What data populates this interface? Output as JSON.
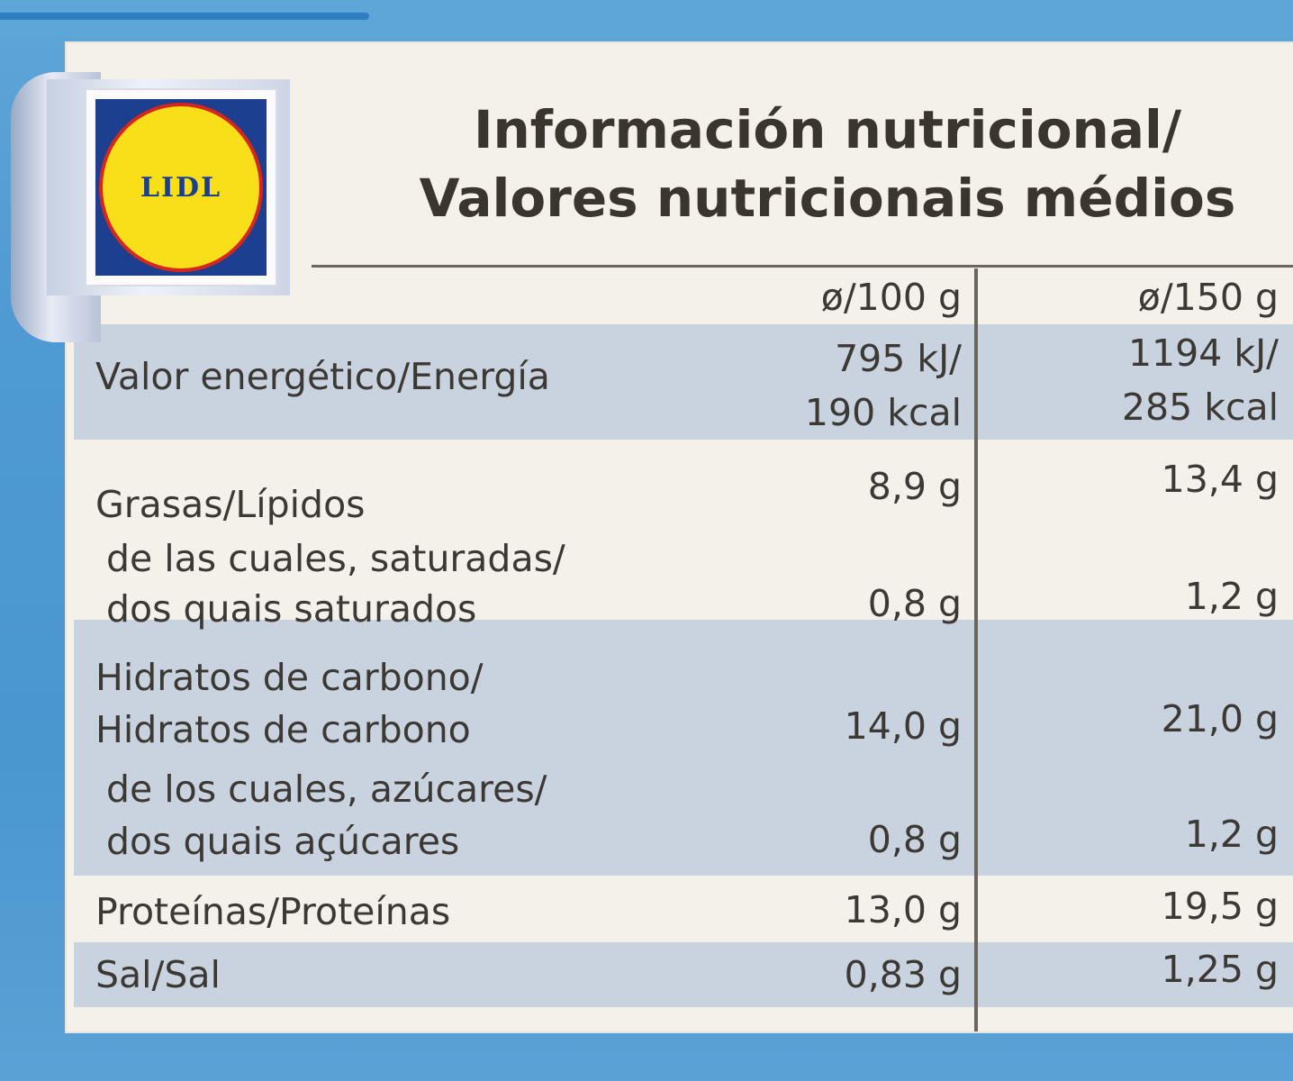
{
  "brand": {
    "logo_text": "LIDL"
  },
  "title": {
    "line1": "Información nutricional/",
    "line2": "Valores nutricionais médios"
  },
  "columns": {
    "per100": "ø/100 g",
    "per150": "ø/150 g"
  },
  "rows": [
    {
      "label": "Valor energético/Energía",
      "per100_line1": "795 kJ/",
      "per100_line2": "190 kcal",
      "per150_line1": "1194 kJ/",
      "per150_line2": "285 kcal"
    },
    {
      "label": "Grasas/Lípidos",
      "per100": "8,9 g",
      "per150": "13,4 g"
    },
    {
      "sub_line1": "de las cuales, saturadas/",
      "sub_line2": "dos quais saturados",
      "per100": "0,8 g",
      "per150": "1,2 g"
    },
    {
      "label_line1": "Hidratos de carbono/",
      "label_line2": "Hidratos de carbono",
      "per100": "14,0 g",
      "per150": "21,0 g"
    },
    {
      "sub_line1": "de los cuales, azúcares/",
      "sub_line2": "dos quais açúcares",
      "per100": "0,8 g",
      "per150": "1,2 g"
    },
    {
      "label": "Proteínas/Proteínas",
      "per100": "13,0 g",
      "per150": "19,5 g"
    },
    {
      "label": "Sal/Sal",
      "per100": "0,83 g",
      "per150": "1,25 g"
    }
  ],
  "colors": {
    "background_blue": "#4f9ad2",
    "panel": "#f3f1ea",
    "band": "#c9d3df",
    "text": "#3c3833",
    "logo_blue": "#1c3f8f",
    "logo_yellow": "#f9de1a",
    "logo_red": "#d7261c"
  }
}
